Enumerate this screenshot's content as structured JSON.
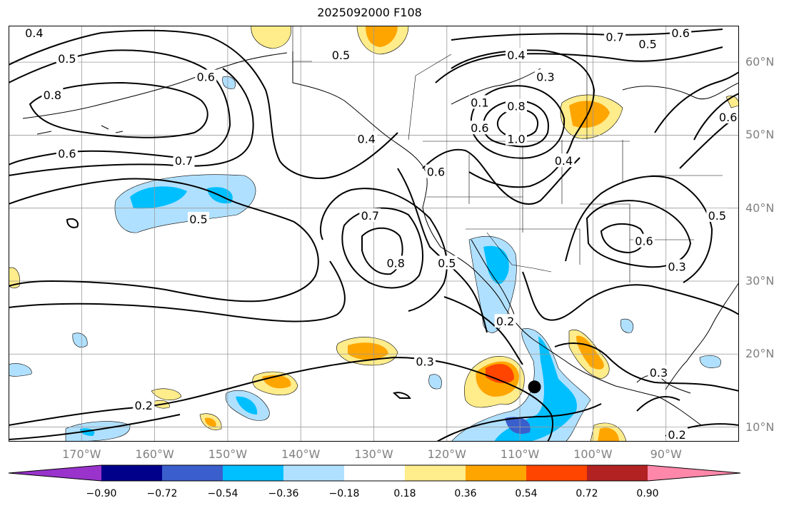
{
  "title": "2025092000 F108",
  "map": {
    "projection": "plate-carree",
    "lon_range": [
      -180,
      -80
    ],
    "lat_range": [
      8,
      65
    ],
    "grid": true,
    "lat_labels": [
      {
        "lat": 60,
        "text": "60°N"
      },
      {
        "lat": 50,
        "text": "50°N"
      },
      {
        "lat": 40,
        "text": "40°N"
      },
      {
        "lat": 30,
        "text": "30°N"
      },
      {
        "lat": 20,
        "text": "20°N"
      },
      {
        "lat": 10,
        "text": "10°N"
      }
    ],
    "lon_labels": [
      {
        "lon": -170,
        "text": "170°W"
      },
      {
        "lon": -160,
        "text": "160°W"
      },
      {
        "lon": -150,
        "text": "150°W"
      },
      {
        "lon": -140,
        "text": "140°W"
      },
      {
        "lon": -130,
        "text": "130°W"
      },
      {
        "lon": -120,
        "text": "120°W"
      },
      {
        "lon": -110,
        "text": "110°W"
      },
      {
        "lon": -100,
        "text": "100°W"
      },
      {
        "lon": -90,
        "text": "90°W"
      }
    ],
    "contour_labels": [
      {
        "text": "0.4",
        "lon": -176.5,
        "lat": 64
      },
      {
        "text": "0.5",
        "lon": -172,
        "lat": 60.5
      },
      {
        "text": "0.8",
        "lon": -174,
        "lat": 55.5
      },
      {
        "text": "0.6",
        "lon": -172,
        "lat": 47.5
      },
      {
        "text": "0.7",
        "lon": -156,
        "lat": 46.5
      },
      {
        "text": "0.6",
        "lon": -153,
        "lat": 58
      },
      {
        "text": "0.5",
        "lon": -154,
        "lat": 38.5
      },
      {
        "text": "0.5",
        "lon": -134.5,
        "lat": 61
      },
      {
        "text": "0.4",
        "lon": -131,
        "lat": 49.5
      },
      {
        "text": "0.7",
        "lon": -130.5,
        "lat": 39
      },
      {
        "text": "0.8",
        "lon": -127,
        "lat": 32.5
      },
      {
        "text": "0.5",
        "lon": -120,
        "lat": 32.5
      },
      {
        "text": "0.6",
        "lon": -121.5,
        "lat": 45
      },
      {
        "text": "0.1",
        "lon": -115.5,
        "lat": 54.5
      },
      {
        "text": "0.8",
        "lon": -110.5,
        "lat": 54
      },
      {
        "text": "0.6",
        "lon": -115.5,
        "lat": 51
      },
      {
        "text": "1.0",
        "lon": -110.5,
        "lat": 49.5
      },
      {
        "text": "0.4",
        "lon": -110.5,
        "lat": 61
      },
      {
        "text": "0.3",
        "lon": -106.5,
        "lat": 58
      },
      {
        "text": "0.4",
        "lon": -104,
        "lat": 46.5
      },
      {
        "text": "0.7",
        "lon": -97,
        "lat": 63.5
      },
      {
        "text": "0.6",
        "lon": -88,
        "lat": 64
      },
      {
        "text": "0.5",
        "lon": -92.5,
        "lat": 62.5
      },
      {
        "text": "0.6",
        "lon": -81.5,
        "lat": 52.5
      },
      {
        "text": "0.5",
        "lon": -83,
        "lat": 39
      },
      {
        "text": "0.6",
        "lon": -93,
        "lat": 35.5
      },
      {
        "text": "0.3",
        "lon": -88.5,
        "lat": 32
      },
      {
        "text": "0.2",
        "lon": -112,
        "lat": 24.5
      },
      {
        "text": "0.3",
        "lon": -123,
        "lat": 19
      },
      {
        "text": "0.2",
        "lon": -161.5,
        "lat": 13
      },
      {
        "text": "0.3",
        "lon": -91,
        "lat": 17.5
      },
      {
        "text": "0.2",
        "lon": -88.5,
        "lat": 9
      }
    ],
    "storm_marker": {
      "lon": -108,
      "lat": 15.5
    }
  },
  "colorbar": {
    "colors": [
      "#9933cc",
      "#00008b",
      "#3a5fcd",
      "#00bfff",
      "#b0e0ff",
      "#ffffff",
      "#ffec8b",
      "#ffa500",
      "#ff4500",
      "#b22222",
      "#ff88aa"
    ],
    "tick_labels": [
      "−0.90",
      "−0.72",
      "−0.54",
      "−0.36",
      "−0.18",
      "0.18",
      "0.36",
      "0.54",
      "0.72",
      "0.90"
    ]
  }
}
